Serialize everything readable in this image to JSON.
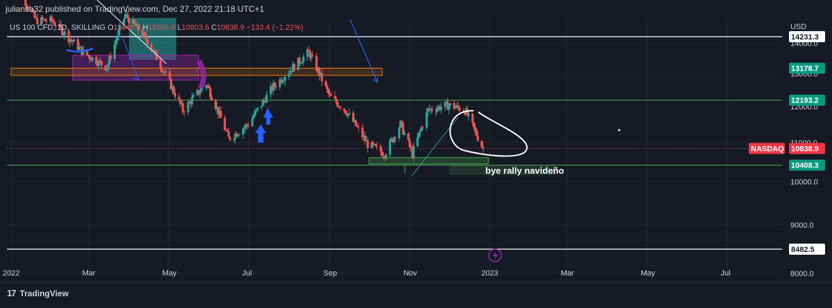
{
  "header": {
    "published_line": "juliansb32 published on TradingView.com, Dec 27, 2022 21:18 UTC+1",
    "symbol_line": "US 100 CFD, 1D, SKILLING",
    "open_label": "O",
    "open_value": "11046.5",
    "high_label": "H",
    "high_value": "11086.0",
    "low_label": "L",
    "low_value": "10803.6",
    "close_label": "C",
    "close_value": "10838.9",
    "change": "−133.4 (−1.22%)"
  },
  "footer": {
    "brand": "TradingView"
  },
  "annotation_text": "bye rally navideño",
  "colors": {
    "background": "#161a25",
    "up": "#26a69a",
    "down": "#ef5350",
    "white_line": "#ffffff",
    "green_line": "#4caf50",
    "orange_zone": "#f57c00",
    "purple_zone": "#9c27b0",
    "teal_zone": "#26a69a",
    "blue_arrow": "#2962ff",
    "nasdaq_badge": "#f23645",
    "teal_badge": "#089981"
  },
  "chart_data": {
    "type": "candlestick",
    "title": "",
    "symbol": "US 100 CFD",
    "timeframe": "1D",
    "broker": "SKILLING",
    "currency": "USD",
    "x_ticks": [
      "2022",
      "Mar",
      "May",
      "Jul",
      "Sep",
      "Nov",
      "2023",
      "Mar",
      "May",
      "Jul"
    ],
    "y_ticks": [
      8000.0,
      9000.0,
      10000.0,
      11000.0,
      12000.0,
      13000.0,
      14000.0
    ],
    "ylim": [
      7930,
      15300
    ],
    "log_scale": true,
    "grid": true,
    "price_series": {
      "name": "US 100 CFD",
      "approx_path": [
        [
          "2022-01-03",
          16300
        ],
        [
          "2022-01-20",
          14800
        ],
        [
          "2022-02-01",
          14800
        ],
        [
          "2022-02-25",
          13700
        ],
        [
          "2022-03-15",
          13200
        ],
        [
          "2022-03-29",
          15000
        ],
        [
          "2022-04-15",
          14100
        ],
        [
          "2022-05-12",
          11900
        ],
        [
          "2022-05-30",
          12700
        ],
        [
          "2022-06-16",
          11100
        ],
        [
          "2022-07-01",
          11500
        ],
        [
          "2022-07-20",
          12600
        ],
        [
          "2022-08-16",
          13700
        ],
        [
          "2022-09-01",
          12300
        ],
        [
          "2022-09-13",
          11900
        ],
        [
          "2022-09-30",
          10950
        ],
        [
          "2022-10-13",
          10700
        ],
        [
          "2022-10-25",
          11500
        ],
        [
          "2022-11-03",
          10700
        ],
        [
          "2022-11-15",
          11900
        ],
        [
          "2022-12-01",
          12050
        ],
        [
          "2022-12-13",
          11900
        ],
        [
          "2022-12-27",
          10838.9
        ]
      ]
    },
    "horizontal_levels": [
      {
        "price": 14231.3,
        "label": "14231.3",
        "color": "white"
      },
      {
        "price": 13178.7,
        "label": "13178.7",
        "color": "teal"
      },
      {
        "price": 12193.2,
        "label": "12193.2",
        "color": "green"
      },
      {
        "price": 10838.9,
        "label": "10838.9",
        "tag": "NASDAQ",
        "color": "red"
      },
      {
        "price": 10408.3,
        "label": "10408.3",
        "color": "green"
      },
      {
        "price": 8482.5,
        "label": "8482.5",
        "color": "white"
      }
    ],
    "zones": [
      {
        "name": "orange-zone",
        "price_low": 12950,
        "price_high": 13180
      },
      {
        "name": "purple-zone",
        "price_low": 12800,
        "price_high": 13600
      },
      {
        "name": "teal-zone",
        "price_low": 13450,
        "price_high": 15300
      },
      {
        "name": "green-zone",
        "price_low": 10440,
        "price_high": 10600
      }
    ],
    "annotations": [
      {
        "text": "bye rally navideño",
        "type": "label"
      }
    ]
  }
}
